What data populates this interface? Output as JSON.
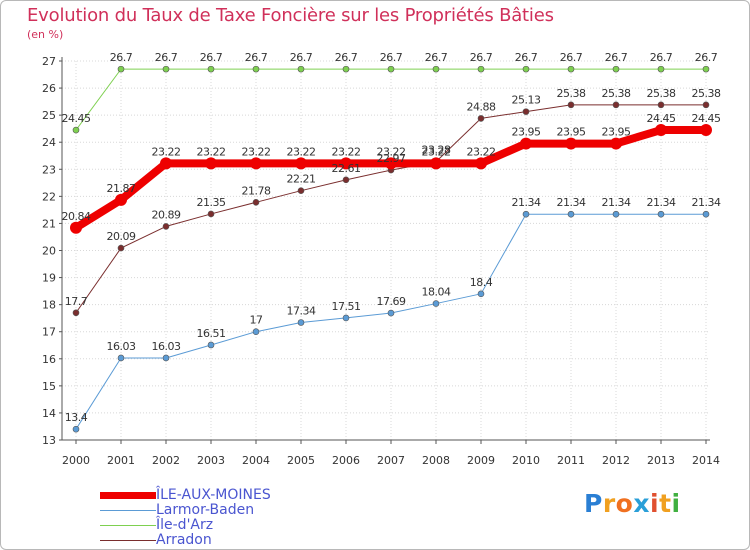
{
  "title": "Evolution du Taux de Taxe Foncière sur les Propriétés Bâties",
  "unit_label": "(en %)",
  "logo": {
    "letters": [
      "P",
      "r",
      "o",
      "x",
      "i",
      "t",
      "i"
    ],
    "colors": [
      "#2a7fd4",
      "#f0a020",
      "#f07020",
      "#2a9fd8",
      "#e05030",
      "#f0a020",
      "#40b040"
    ]
  },
  "chart_data": {
    "type": "line",
    "x": [
      "2000",
      "2001",
      "2002",
      "2003",
      "2004",
      "2005",
      "2006",
      "2007",
      "2008",
      "2009",
      "2010",
      "2011",
      "2012",
      "2013",
      "2014"
    ],
    "ylim": [
      13,
      27
    ],
    "yticks": [
      13,
      14,
      15,
      16,
      17,
      18,
      19,
      20,
      21,
      22,
      23,
      24,
      25,
      26,
      27
    ],
    "series": [
      {
        "name": "ÎLE-AUX-MOINES",
        "color": "#ee0000",
        "values": [
          20.84,
          21.87,
          23.22,
          23.22,
          23.22,
          23.22,
          23.22,
          23.22,
          23.22,
          23.22,
          23.95,
          23.95,
          23.95,
          24.45,
          24.45
        ],
        "labels": [
          "20.84",
          "21.87",
          "23.22",
          "23.22",
          "23.22",
          "23.22",
          "23.22",
          "23.22",
          "23.22",
          "23.22",
          "23.95",
          "23.95",
          "23.95",
          "24.45",
          "24.45"
        ]
      },
      {
        "name": "Larmor-Baden",
        "color": "#5b9bd5",
        "values": [
          13.4,
          16.03,
          16.03,
          16.51,
          17,
          17.34,
          17.51,
          17.69,
          18.04,
          18.4,
          21.34,
          21.34,
          21.34,
          21.34,
          21.34
        ],
        "labels": [
          "13.4",
          "16.03",
          "16.03",
          "16.51",
          "17",
          "17.34",
          "17.51",
          "17.69",
          "18.04",
          "18.4",
          "21.34",
          "21.34",
          "21.34",
          "21.34",
          "21.34"
        ]
      },
      {
        "name": "Île-d'Arz",
        "color": "#7ed050",
        "values": [
          24.45,
          26.7,
          26.7,
          26.7,
          26.7,
          26.7,
          26.7,
          26.7,
          26.7,
          26.7,
          26.7,
          26.7,
          26.7,
          26.7,
          26.7
        ],
        "labels": [
          "24.45",
          "26.7",
          "26.7",
          "26.7",
          "26.7",
          "26.7",
          "26.7",
          "26.7",
          "26.7",
          "26.7",
          "26.7",
          "26.7",
          "26.7",
          "26.7",
          "26.7"
        ]
      },
      {
        "name": "Arradon",
        "color": "#7a2e2e",
        "values": [
          17.7,
          20.09,
          20.89,
          21.35,
          21.78,
          22.21,
          22.61,
          22.97,
          23.28,
          24.88,
          25.13,
          25.38,
          25.38,
          25.38,
          25.38
        ],
        "labels": [
          "17.7",
          "20.09",
          "20.89",
          "21.35",
          "21.78",
          "22.21",
          "22.61",
          "22.97",
          "23.28",
          "24.88",
          "25.13",
          "25.38",
          "25.38",
          "25.38",
          "25.38"
        ]
      }
    ]
  }
}
